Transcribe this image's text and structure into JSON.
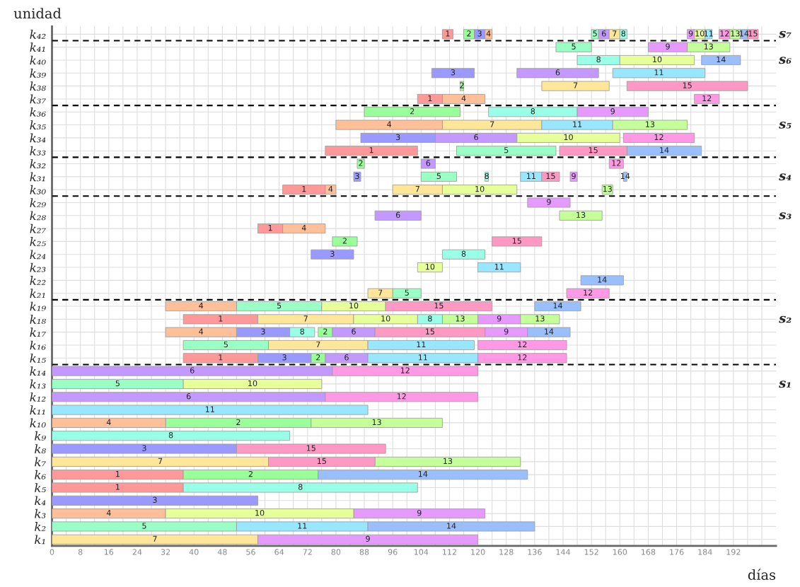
{
  "chart_data": {
    "type": "bar",
    "orientation": "horizontal",
    "xlabel": "días",
    "ylabel": "unidad",
    "categories": [
      "k₄₂",
      "k₄₁",
      "k₄₀",
      "k₃₉",
      "k₃₈",
      "k₃₇",
      "k₃₆",
      "k₃₅",
      "k₃₄",
      "k₃₃",
      "k₃₂",
      "k₃₁",
      "k₃₀",
      "k₂₉",
      "k₂₈",
      "k₂₇",
      "k₂₅",
      "k₂₄",
      "k₂₃",
      "k₂₂",
      "k₂₁",
      "k₁₉",
      "k₁₈",
      "k₁₇",
      "k₁₆",
      "k₁₅",
      "k₁₄",
      "k₁₃",
      "k₁₂",
      "k₁₁",
      "k₁₀",
      "k₉",
      "k₈",
      "k₇",
      "k₆",
      "k₅",
      "k₄",
      "k₃",
      "k₂",
      "k₁"
    ],
    "xlim": [
      0,
      204
    ],
    "xticks": [
      0,
      {
        "value": 4,
        "label": null
      },
      8,
      {
        "value": 12,
        "label": null
      },
      16,
      {
        "value": 20,
        "label": null
      },
      24,
      {
        "value": 28,
        "label": null
      },
      32,
      {
        "value": 36,
        "label": null
      },
      40,
      {
        "value": 44,
        "label": null
      },
      48,
      {
        "value": 52,
        "label": null
      },
      56,
      {
        "value": 60,
        "label": null
      },
      64,
      {
        "value": 68,
        "label": null
      },
      72,
      {
        "value": 76,
        "label": null
      },
      80,
      {
        "value": 84,
        "label": null
      },
      88,
      {
        "value": 92,
        "label": null
      },
      96,
      {
        "value": 100,
        "label": null
      },
      104,
      {
        "value": 108,
        "label": null
      },
      112,
      {
        "value": 116,
        "label": null
      },
      120,
      {
        "value": 124,
        "label": null
      },
      128,
      {
        "value": 132,
        "label": null
      },
      136,
      {
        "value": 140,
        "label": null
      },
      144,
      {
        "value": 148,
        "label": null
      },
      152,
      {
        "value": 156,
        "label": null
      },
      160,
      {
        "value": 164,
        "label": null
      },
      168,
      {
        "value": 172,
        "label": null
      },
      176,
      {
        "value": 180,
        "label": null
      },
      184,
      {
        "value": 188,
        "label": null
      },
      192,
      {
        "value": 196,
        "label": null
      },
      {
        "value": 200,
        "label": null
      }
    ],
    "grid": true,
    "annotations": [
      "s₁",
      "s₂",
      "s₃",
      "s₄",
      "s₅",
      "s₆",
      "s₇"
    ],
    "series": [
      {
        "name": "1",
        "color": "#ff9999",
        "values": [
          3,
          null,
          null,
          null,
          null,
          7,
          null,
          null,
          null,
          26,
          null,
          null,
          12,
          null,
          null,
          7,
          null,
          null,
          null,
          null,
          null,
          null,
          21,
          null,
          null,
          21,
          null,
          null,
          null,
          null,
          null,
          null,
          null,
          null,
          37,
          37,
          null,
          null,
          null,
          null
        ],
        "base": [
          110,
          null,
          null,
          null,
          null,
          103,
          null,
          null,
          null,
          77,
          null,
          null,
          65,
          null,
          null,
          58,
          null,
          null,
          null,
          null,
          null,
          null,
          37,
          null,
          null,
          37,
          null,
          null,
          null,
          null,
          null,
          null,
          null,
          null,
          0,
          0,
          null,
          null,
          null,
          null
        ]
      },
      {
        "name": "2",
        "color": "#99ff99",
        "values": [
          3,
          null,
          null,
          null,
          1,
          null,
          27,
          null,
          null,
          null,
          2,
          null,
          null,
          null,
          null,
          null,
          7,
          null,
          null,
          null,
          null,
          null,
          null,
          4,
          null,
          4,
          null,
          null,
          null,
          null,
          41,
          null,
          null,
          null,
          38,
          null,
          null,
          null,
          null,
          null
        ],
        "base": [
          116,
          null,
          null,
          null,
          115,
          null,
          88,
          null,
          null,
          null,
          86,
          null,
          null,
          null,
          null,
          null,
          79,
          null,
          null,
          null,
          null,
          null,
          null,
          75,
          null,
          73,
          null,
          null,
          null,
          null,
          32,
          null,
          null,
          null,
          37,
          null,
          null,
          null,
          null,
          null
        ]
      },
      {
        "name": "3",
        "color": "#9999ff",
        "values": [
          3,
          null,
          null,
          12,
          null,
          null,
          null,
          null,
          21,
          null,
          null,
          2,
          null,
          null,
          null,
          null,
          null,
          12,
          null,
          null,
          null,
          null,
          null,
          15,
          null,
          15,
          null,
          null,
          null,
          null,
          null,
          null,
          52,
          null,
          null,
          null,
          58,
          null,
          null,
          null
        ],
        "base": [
          119,
          null,
          null,
          107,
          null,
          null,
          null,
          null,
          87,
          null,
          null,
          85,
          null,
          null,
          null,
          null,
          null,
          73,
          null,
          null,
          null,
          null,
          null,
          52,
          null,
          58,
          null,
          null,
          null,
          null,
          null,
          null,
          0,
          null,
          null,
          null,
          0,
          null,
          null,
          null
        ]
      },
      {
        "name": "4",
        "color": "#ffbf99",
        "values": [
          2,
          null,
          null,
          null,
          null,
          12,
          null,
          30,
          null,
          null,
          null,
          null,
          3,
          null,
          null,
          12,
          null,
          null,
          null,
          null,
          null,
          20,
          null,
          20,
          null,
          null,
          null,
          null,
          null,
          null,
          32,
          null,
          null,
          null,
          null,
          null,
          null,
          32,
          null,
          null
        ],
        "base": [
          122,
          null,
          null,
          null,
          null,
          110,
          null,
          80,
          null,
          null,
          null,
          null,
          77,
          null,
          null,
          65,
          null,
          null,
          null,
          null,
          null,
          32,
          null,
          32,
          null,
          null,
          null,
          null,
          null,
          null,
          0,
          null,
          null,
          null,
          null,
          null,
          null,
          0,
          null,
          null
        ]
      },
      {
        "name": "5",
        "color": "#99ffc4",
        "values": [
          2,
          10,
          null,
          null,
          null,
          null,
          null,
          null,
          null,
          28,
          null,
          10,
          null,
          null,
          null,
          null,
          null,
          null,
          null,
          null,
          8,
          24,
          null,
          null,
          24,
          null,
          null,
          37,
          null,
          null,
          null,
          null,
          null,
          null,
          null,
          null,
          null,
          null,
          52,
          null
        ],
        "base": [
          152,
          142,
          null,
          null,
          null,
          null,
          null,
          null,
          null,
          114,
          null,
          104,
          null,
          null,
          null,
          null,
          null,
          null,
          null,
          null,
          96,
          52,
          null,
          null,
          37,
          null,
          null,
          0,
          null,
          null,
          null,
          null,
          null,
          null,
          null,
          null,
          null,
          null,
          0,
          null
        ]
      },
      {
        "name": "6",
        "color": "#c499ff",
        "values": [
          3,
          null,
          null,
          23,
          null,
          null,
          null,
          null,
          23,
          null,
          4,
          null,
          null,
          null,
          13,
          null,
          null,
          null,
          null,
          null,
          null,
          null,
          null,
          12,
          null,
          12,
          79,
          null,
          77,
          null,
          null,
          null,
          null,
          null,
          null,
          null,
          null,
          null,
          null,
          null
        ],
        "base": [
          154,
          null,
          null,
          131,
          null,
          null,
          null,
          null,
          108,
          null,
          104,
          null,
          null,
          null,
          91,
          null,
          null,
          null,
          null,
          null,
          null,
          null,
          null,
          79,
          null,
          77,
          0,
          null,
          0,
          null,
          null,
          null,
          null,
          null,
          null,
          null,
          null,
          null,
          null,
          null
        ]
      },
      {
        "name": "7",
        "color": "#ffe699",
        "values": [
          3,
          null,
          null,
          null,
          19,
          null,
          null,
          28,
          null,
          null,
          null,
          null,
          14,
          null,
          null,
          null,
          null,
          null,
          null,
          null,
          7,
          null,
          27,
          null,
          28,
          null,
          null,
          null,
          null,
          null,
          null,
          null,
          null,
          61,
          null,
          null,
          null,
          null,
          null,
          58
        ],
        "base": [
          157,
          null,
          null,
          null,
          138,
          null,
          null,
          110,
          null,
          null,
          null,
          null,
          96,
          null,
          null,
          null,
          null,
          null,
          null,
          null,
          89,
          null,
          58,
          null,
          61,
          null,
          null,
          null,
          null,
          null,
          null,
          null,
          null,
          0,
          null,
          null,
          null,
          null,
          null,
          0
        ]
      },
      {
        "name": "8",
        "color": "#99ffe6",
        "values": [
          2,
          null,
          12,
          null,
          null,
          null,
          25,
          null,
          null,
          null,
          null,
          1,
          null,
          null,
          null,
          null,
          null,
          12,
          null,
          null,
          null,
          null,
          7,
          7,
          null,
          null,
          null,
          null,
          null,
          null,
          null,
          67,
          null,
          null,
          null,
          66,
          null,
          null,
          null,
          null
        ],
        "base": [
          160,
          null,
          148,
          null,
          null,
          null,
          123,
          null,
          null,
          null,
          null,
          122,
          null,
          null,
          null,
          null,
          null,
          110,
          null,
          null,
          null,
          null,
          103,
          67,
          null,
          null,
          null,
          null,
          null,
          null,
          null,
          0,
          null,
          null,
          null,
          37,
          null,
          null,
          null,
          null
        ]
      },
      {
        "name": "9",
        "color": "#e699ff",
        "values": [
          2,
          11,
          null,
          null,
          null,
          null,
          20,
          null,
          null,
          null,
          null,
          2,
          null,
          12,
          null,
          null,
          null,
          null,
          null,
          null,
          null,
          null,
          12,
          12,
          null,
          null,
          null,
          null,
          null,
          null,
          null,
          null,
          null,
          null,
          null,
          null,
          null,
          37,
          null,
          62
        ],
        "base": [
          179,
          168,
          null,
          null,
          null,
          null,
          148,
          null,
          null,
          null,
          null,
          146,
          null,
          134,
          null,
          null,
          null,
          null,
          null,
          null,
          null,
          null,
          120,
          122,
          null,
          null,
          null,
          null,
          null,
          null,
          null,
          null,
          null,
          null,
          null,
          null,
          null,
          85,
          null,
          58
        ]
      },
      {
        "name": "10",
        "color": "#e6ff99",
        "values": [
          3,
          null,
          21,
          null,
          null,
          null,
          null,
          null,
          29,
          null,
          null,
          null,
          21,
          null,
          null,
          null,
          null,
          null,
          7,
          null,
          null,
          18,
          18,
          null,
          null,
          null,
          null,
          39,
          null,
          null,
          null,
          null,
          null,
          null,
          null,
          null,
          null,
          53,
          null,
          null
        ],
        "base": [
          181,
          null,
          160,
          null,
          null,
          null,
          null,
          null,
          131,
          null,
          null,
          null,
          110,
          null,
          null,
          null,
          null,
          null,
          103,
          null,
          null,
          76,
          85,
          null,
          null,
          null,
          null,
          37,
          null,
          null,
          null,
          null,
          null,
          null,
          null,
          null,
          null,
          32,
          null,
          null
        ]
      },
      {
        "name": "11",
        "color": "#99e6ff",
        "values": [
          2,
          null,
          null,
          26,
          null,
          null,
          null,
          20,
          null,
          null,
          null,
          6,
          null,
          null,
          null,
          null,
          null,
          null,
          12,
          null,
          null,
          null,
          null,
          null,
          30,
          31,
          null,
          null,
          null,
          89,
          null,
          null,
          null,
          null,
          null,
          null,
          null,
          null,
          37,
          null
        ],
        "base": [
          184,
          null,
          null,
          158,
          null,
          null,
          null,
          138,
          null,
          null,
          null,
          132,
          null,
          null,
          null,
          null,
          null,
          null,
          120,
          null,
          null,
          null,
          null,
          null,
          89,
          89,
          null,
          null,
          null,
          0,
          null,
          null,
          null,
          null,
          null,
          null,
          null,
          null,
          52,
          null
        ]
      },
      {
        "name": "12",
        "color": "#ff99e6",
        "values": [
          3,
          null,
          null,
          null,
          null,
          7,
          null,
          null,
          20,
          null,
          4,
          null,
          null,
          null,
          null,
          null,
          null,
          null,
          null,
          null,
          12,
          null,
          null,
          null,
          25,
          25,
          41,
          null,
          43,
          null,
          null,
          null,
          null,
          null,
          null,
          null,
          null,
          null,
          null,
          null
        ],
        "base": [
          188,
          null,
          null,
          null,
          null,
          181,
          null,
          null,
          161,
          null,
          157,
          null,
          null,
          null,
          null,
          null,
          null,
          null,
          null,
          null,
          145,
          null,
          null,
          null,
          120,
          120,
          79,
          null,
          77,
          null,
          null,
          null,
          null,
          null,
          null,
          null,
          null,
          null,
          null,
          null
        ]
      },
      {
        "name": "13",
        "color": "#c4ff99",
        "values": [
          3,
          12,
          null,
          null,
          null,
          null,
          null,
          21,
          null,
          null,
          null,
          null,
          3,
          null,
          12,
          null,
          null,
          null,
          null,
          null,
          null,
          null,
          10,
          null,
          null,
          null,
          null,
          null,
          null,
          null,
          37,
          null,
          null,
          41,
          null,
          null,
          null,
          null,
          null,
          null
        ],
        "base": [
          191,
          179,
          null,
          null,
          null,
          null,
          null,
          158,
          null,
          null,
          null,
          null,
          155,
          null,
          143,
          null,
          null,
          null,
          null,
          null,
          null,
          null,
          110,
          null,
          null,
          null,
          null,
          null,
          null,
          null,
          73,
          null,
          null,
          91,
          null,
          null,
          null,
          null,
          null,
          null
        ]
      },
      {
        "name": "13",
        "color": "#c4ff99",
        "values": [
          null,
          null,
          null,
          null,
          null,
          null,
          null,
          null,
          null,
          null,
          null,
          null,
          null,
          null,
          null,
          null,
          null,
          null,
          null,
          null,
          null,
          null,
          11,
          null,
          null,
          null,
          null,
          null,
          null,
          null,
          null,
          null,
          null,
          null,
          null,
          null,
          null,
          null,
          null,
          null
        ],
        "base": [
          null,
          null,
          null,
          null,
          null,
          null,
          null,
          null,
          null,
          null,
          null,
          null,
          null,
          null,
          null,
          null,
          null,
          null,
          null,
          null,
          null,
          null,
          132,
          null,
          null,
          null,
          null,
          null,
          null,
          null,
          null,
          null,
          null,
          null,
          null,
          null,
          null,
          null,
          null,
          null
        ]
      },
      {
        "name": "14",
        "color": "#99bfff",
        "values": [
          2,
          null,
          11,
          null,
          null,
          null,
          null,
          null,
          null,
          21,
          null,
          1,
          null,
          null,
          null,
          null,
          null,
          null,
          null,
          12,
          null,
          13,
          null,
          12,
          null,
          null,
          null,
          null,
          null,
          null,
          null,
          null,
          null,
          null,
          59,
          null,
          null,
          null,
          47,
          null
        ],
        "base": [
          194,
          null,
          183,
          null,
          null,
          null,
          null,
          null,
          null,
          162,
          null,
          161,
          null,
          null,
          null,
          null,
          null,
          null,
          null,
          149,
          null,
          136,
          null,
          134,
          null,
          null,
          null,
          null,
          null,
          null,
          null,
          null,
          null,
          null,
          75,
          null,
          null,
          null,
          89,
          null
        ]
      },
      {
        "name": "15",
        "color": "#ff99c4",
        "values": [
          3,
          null,
          null,
          null,
          34,
          null,
          null,
          null,
          null,
          19,
          null,
          5,
          null,
          null,
          null,
          null,
          14,
          null,
          null,
          null,
          null,
          30,
          null,
          31,
          null,
          null,
          null,
          null,
          null,
          null,
          null,
          null,
          42,
          30,
          null,
          null,
          null,
          null,
          null,
          null
        ],
        "base": [
          196,
          null,
          null,
          null,
          162,
          null,
          null,
          null,
          null,
          143,
          null,
          138,
          null,
          null,
          null,
          null,
          124,
          null,
          null,
          null,
          null,
          94,
          null,
          91,
          null,
          null,
          null,
          null,
          null,
          null,
          null,
          null,
          52,
          61,
          null,
          null,
          null,
          null,
          null,
          null
        ]
      }
    ]
  }
}
